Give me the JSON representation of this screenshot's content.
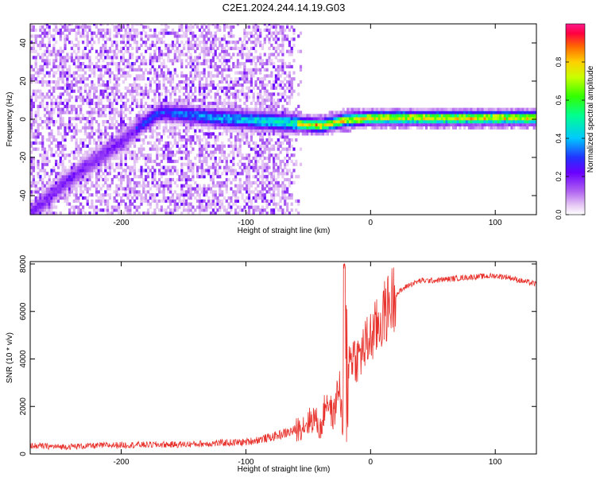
{
  "title": "C2E1.2024.244.14.19.G03",
  "chart_data": [
    {
      "type": "heatmap",
      "xlabel": "Height of straight line (km)",
      "ylabel": "Frequency (Hz)",
      "xlim": [
        -273,
        133
      ],
      "ylim": [
        -50,
        50
      ],
      "x_ticks": [
        -200,
        -100,
        0,
        100
      ],
      "x_tick_labels": [
        "-200",
        "-100",
        "0",
        "100"
      ],
      "y_ticks": [
        -40,
        -20,
        0,
        20,
        40
      ],
      "y_tick_labels": [
        "-40",
        "-20",
        "0",
        "20",
        "40"
      ],
      "colorbar": {
        "label": "Normalized spectral amplitude",
        "range": [
          0,
          1
        ],
        "ticks": [
          0.0,
          0.2,
          0.4,
          0.6,
          0.8
        ],
        "tick_labels": [
          "0.0",
          "0.2",
          "0.4",
          "0.6",
          "0.8"
        ]
      },
      "features": {
        "diffuse_noise_region_x": [
          -273,
          -55
        ],
        "ridge_center_hz": [
          [
            -273,
            -50
          ],
          [
            -250,
            -36
          ],
          [
            -230,
            -26
          ],
          [
            -200,
            -12
          ],
          [
            -185,
            -4
          ],
          [
            -170,
            3
          ],
          [
            -150,
            2
          ],
          [
            -125,
            0
          ],
          [
            -100,
            -1
          ],
          [
            -80,
            -2
          ],
          [
            -60,
            -3
          ],
          [
            -40,
            -4
          ],
          [
            -20,
            -1
          ],
          [
            0,
            0
          ],
          [
            10,
            0
          ],
          [
            50,
            0
          ],
          [
            100,
            0
          ],
          [
            133,
            0
          ]
        ],
        "strong_line_x": [
          -60,
          133
        ]
      },
      "grid": false
    },
    {
      "type": "line",
      "xlabel": "Height of straight line (km)",
      "ylabel": "SNR (10 * v/v)",
      "xlim": [
        -273,
        133
      ],
      "ylim": [
        0,
        8100
      ],
      "x_ticks": [
        -200,
        -100,
        0,
        100
      ],
      "x_tick_labels": [
        "-200",
        "-100",
        "0",
        "100"
      ],
      "y_ticks": [
        0,
        2000,
        4000,
        6000,
        8000
      ],
      "y_tick_labels": [
        "0",
        "2000",
        "4000",
        "6000",
        "8000"
      ],
      "series_color": "#e8302a",
      "x": [
        -273,
        -250,
        -200,
        -150,
        -100,
        -80,
        -60,
        -50,
        -45,
        -40,
        -35,
        -30,
        -25,
        -22,
        -20,
        -18,
        -15,
        -10,
        -5,
        0,
        5,
        10,
        15,
        20,
        30,
        40,
        50,
        60,
        80,
        100,
        110,
        120,
        133
      ],
      "values": [
        350,
        300,
        380,
        400,
        500,
        700,
        1000,
        1350,
        1550,
        1000,
        2400,
        1500,
        3000,
        900,
        8100,
        3800,
        4200,
        4000,
        4500,
        4900,
        5300,
        5800,
        6300,
        6700,
        7100,
        7300,
        7300,
        7350,
        7450,
        7500,
        7450,
        7300,
        7150
      ],
      "noise_amplitude_note": "",
      "grid": false
    }
  ]
}
